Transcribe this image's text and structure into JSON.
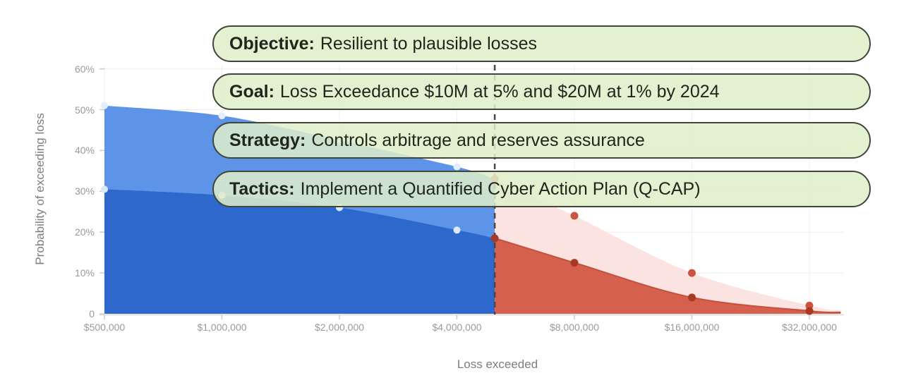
{
  "pills": [
    {
      "label": "Objective:",
      "text": "Resilient to plausible losses"
    },
    {
      "label": "Goal:",
      "text": "Loss Exceedance $10M at 5% and $20M at 1% by 2024"
    },
    {
      "label": "Strategy:",
      "text": "Controls arbitrage and reserves assurance"
    },
    {
      "label": "Tactics:",
      "text": "Implement a Quantified Cyber Action Plan (Q-CAP)"
    }
  ],
  "pill_style": {
    "background_rgba": "rgba(223,238,201,0.85)",
    "border_color": "#40463a"
  },
  "chart_data": {
    "type": "area",
    "xlabel": "Loss exceeded",
    "ylabel": "Probability of exceeding loss",
    "x_scale": "log2",
    "grid": true,
    "ylim": [
      0,
      60
    ],
    "threshold_x": 5000000,
    "threshold_line_color": "#484848",
    "x_ticks": [
      {
        "value": 500000,
        "label": "$500,000"
      },
      {
        "value": 1000000,
        "label": "$1,000,000"
      },
      {
        "value": 2000000,
        "label": "$2,000,000"
      },
      {
        "value": 4000000,
        "label": "$4,000,000"
      },
      {
        "value": 8000000,
        "label": "$8,000,000"
      },
      {
        "value": 16000000,
        "label": "$16,000,000"
      },
      {
        "value": 32000000,
        "label": "$32,000,000"
      }
    ],
    "y_ticks": [
      {
        "value": 0,
        "label": "0"
      },
      {
        "value": 10,
        "label": "10%"
      },
      {
        "value": 20,
        "label": "20%"
      },
      {
        "value": 30,
        "label": "30%"
      },
      {
        "value": 40,
        "label": "40%"
      },
      {
        "value": 50,
        "label": "50%"
      },
      {
        "value": 60,
        "label": "60%"
      }
    ],
    "series": [
      {
        "name": "blue-light-area",
        "area_color": "#5d94e7",
        "dot_color": "#e4edfa",
        "points": [
          [
            500000,
            51
          ],
          [
            1000000,
            48.5
          ],
          [
            2000000,
            42.5
          ],
          [
            4000000,
            36
          ],
          [
            5000000,
            33
          ]
        ],
        "dots": [
          [
            500000,
            51
          ],
          [
            1000000,
            48.5
          ],
          [
            2000000,
            42.5
          ],
          [
            4000000,
            36
          ]
        ]
      },
      {
        "name": "blue-dark-area",
        "area_color": "#2e68cd",
        "dot_color": "#dde9f8",
        "points": [
          [
            500000,
            30.5
          ],
          [
            1000000,
            29
          ],
          [
            2000000,
            26
          ],
          [
            4000000,
            20.5
          ],
          [
            5000000,
            18.5
          ]
        ],
        "dots": [
          [
            500000,
            30.5
          ],
          [
            1000000,
            29
          ],
          [
            2000000,
            26
          ],
          [
            4000000,
            20.5
          ]
        ]
      },
      {
        "name": "red-light-area",
        "area_color": "#fae3e0",
        "dot_color": "#cd5240",
        "points": [
          [
            5000000,
            33
          ],
          [
            8000000,
            24
          ],
          [
            16000000,
            10
          ],
          [
            32000000,
            2
          ],
          [
            38500000,
            0.9
          ]
        ],
        "dots": [
          [
            5000000,
            33
          ],
          [
            8000000,
            24
          ],
          [
            16000000,
            10
          ],
          [
            32000000,
            2
          ]
        ]
      },
      {
        "name": "red-dark-area",
        "area_color": "#d4604d",
        "line_color": "#c5503c",
        "dot_color": "#a63a22",
        "points": [
          [
            5000000,
            18.5
          ],
          [
            8000000,
            12.5
          ],
          [
            16000000,
            4
          ],
          [
            32000000,
            0.7
          ],
          [
            38500000,
            0.35
          ]
        ],
        "dots": [
          [
            5000000,
            18.5
          ],
          [
            8000000,
            12.5
          ],
          [
            16000000,
            4
          ],
          [
            32000000,
            0.7
          ]
        ]
      }
    ]
  }
}
